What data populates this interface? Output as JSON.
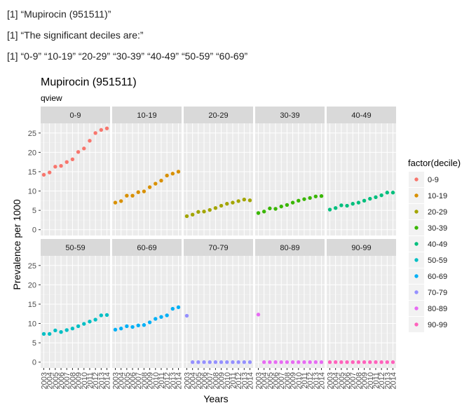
{
  "console": {
    "line1": "[1] “Mupirocin (951511)”",
    "line2": "[1] “The significant deciles are:”",
    "line3": "[1] “0-9” “10-19” “20-29” “30-39” “40-49” “50-59” “60-69”"
  },
  "chart_data": {
    "type": "scatter",
    "title": "Mupirocin (951511)",
    "subtitle": "qview",
    "xlabel": "Years",
    "ylabel": "Prevalence per 1000",
    "ylim": [
      -1.5,
      27.5
    ],
    "y_ticks": [
      0,
      5,
      10,
      15,
      20,
      25
    ],
    "x": [
      2003,
      2004,
      2005,
      2006,
      2007,
      2008,
      2009,
      2010,
      2011,
      2012,
      2013,
      2014
    ],
    "grid": true,
    "legend": {
      "title": "factor(decile)",
      "placement": "right"
    },
    "facets": [
      {
        "name": "0-9",
        "color": "#F8766D",
        "values": [
          14.2,
          14.8,
          16.3,
          16.5,
          17.5,
          18.2,
          20.1,
          21.0,
          23.0,
          25.0,
          25.8,
          26.2
        ]
      },
      {
        "name": "10-19",
        "color": "#D89000",
        "values": [
          7.0,
          7.4,
          8.8,
          8.8,
          9.7,
          9.9,
          11.0,
          11.9,
          12.7,
          14.0,
          14.5,
          15.0
        ]
      },
      {
        "name": "20-29",
        "color": "#A3A500",
        "values": [
          3.5,
          3.9,
          4.6,
          4.7,
          5.1,
          5.6,
          6.2,
          6.7,
          7.0,
          7.4,
          7.8,
          7.6
        ]
      },
      {
        "name": "30-39",
        "color": "#39B600",
        "values": [
          4.3,
          4.7,
          5.5,
          5.4,
          6.0,
          6.4,
          7.0,
          7.5,
          7.9,
          8.2,
          8.6,
          8.7
        ]
      },
      {
        "name": "40-49",
        "color": "#00BF7D",
        "values": [
          5.2,
          5.6,
          6.3,
          6.2,
          6.7,
          7.0,
          7.5,
          8.0,
          8.4,
          8.9,
          9.6,
          9.6
        ]
      },
      {
        "name": "50-59",
        "color": "#00BFC4",
        "values": [
          7.3,
          7.3,
          8.2,
          7.8,
          8.3,
          8.7,
          9.3,
          9.9,
          10.5,
          11.0,
          12.1,
          12.2
        ]
      },
      {
        "name": "60-69",
        "color": "#00B0F6",
        "values": [
          8.4,
          8.7,
          9.3,
          9.1,
          9.5,
          9.6,
          10.3,
          11.2,
          11.7,
          12.1,
          13.8,
          14.2
        ]
      },
      {
        "name": "70-79",
        "color": "#9590FF",
        "values": [
          12.0,
          0,
          0,
          0,
          0,
          0,
          0,
          0,
          0,
          0,
          0,
          0
        ]
      },
      {
        "name": "80-89",
        "color": "#E76BF3",
        "values": [
          12.3,
          0,
          0,
          0,
          0,
          0,
          0,
          0,
          0,
          0,
          0,
          0
        ]
      },
      {
        "name": "90-99",
        "color": "#FF62BC",
        "values": [
          0,
          0,
          0,
          0,
          0,
          0,
          0,
          0,
          0,
          0,
          0,
          0
        ]
      }
    ]
  }
}
